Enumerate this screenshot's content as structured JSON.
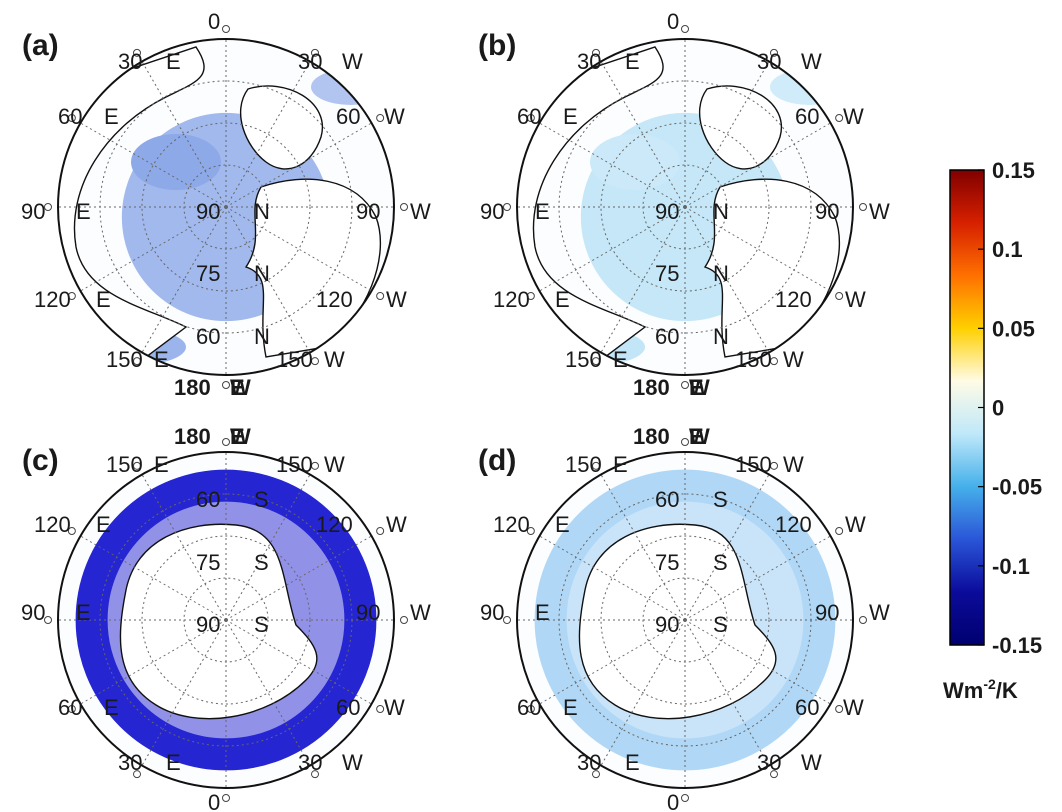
{
  "panels": [
    {
      "id": "a",
      "label": "(a)",
      "hemisphere": "north",
      "lon_labels": [
        "0",
        "30",
        "E",
        "30",
        "W",
        "60",
        "E",
        "60",
        "W",
        "90",
        "E",
        "90",
        "W",
        "120",
        "E",
        "120",
        "W",
        "150",
        "E",
        "150",
        "W",
        "180",
        "W",
        "E"
      ],
      "lat_labels": [
        "90",
        "N",
        "75",
        "N",
        "60",
        "N"
      ],
      "anomaly_strength": 0.55,
      "anomaly_color": "#2f62d6"
    },
    {
      "id": "b",
      "label": "(b)",
      "hemisphere": "north",
      "lon_labels": [
        "0",
        "30",
        "E",
        "30",
        "W",
        "60",
        "E",
        "60",
        "W",
        "90",
        "E",
        "90",
        "W",
        "120",
        "E",
        "120",
        "W",
        "150",
        "E",
        "150",
        "W",
        "180",
        "W",
        "E"
      ],
      "lat_labels": [
        "90",
        "N",
        "75",
        "N",
        "60",
        "N"
      ],
      "anomaly_strength": 0.3,
      "anomaly_color": "#52b6e8"
    },
    {
      "id": "c",
      "label": "(c)",
      "hemisphere": "south",
      "lon_labels": [
        "0",
        "30",
        "E",
        "30",
        "W",
        "60",
        "E",
        "60",
        "W",
        "90",
        "E",
        "90",
        "W",
        "120",
        "E",
        "120",
        "W",
        "150",
        "E",
        "150",
        "W",
        "180",
        "W",
        "E"
      ],
      "lat_labels": [
        "90",
        "S",
        "75",
        "S",
        "60",
        "S"
      ],
      "anomaly_strength": 0.95,
      "anomaly_color": "#1a1ad0"
    },
    {
      "id": "d",
      "label": "(d)",
      "hemisphere": "south",
      "lon_labels": [
        "0",
        "30",
        "E",
        "30",
        "W",
        "60",
        "E",
        "60",
        "W",
        "90",
        "E",
        "90",
        "W",
        "120",
        "E",
        "120",
        "W",
        "150",
        "E",
        "150",
        "W",
        "180",
        "W",
        "E"
      ],
      "lat_labels": [
        "90",
        "S",
        "75",
        "S",
        "60",
        "S"
      ],
      "anomaly_strength": 0.45,
      "anomaly_color": "#4fa8ea"
    }
  ],
  "colorbar": {
    "ticks": [
      "0.15",
      "0.1",
      "0.05",
      "0",
      "-0.05",
      "-0.1",
      "-0.15"
    ],
    "values": [
      0.15,
      0.1,
      0.05,
      0,
      -0.05,
      -0.1,
      -0.15
    ],
    "range": [
      -0.15,
      0.15
    ],
    "unit_base": "Wm",
    "unit_exp": "-2",
    "unit_tail": "/K",
    "colors": [
      "#800000",
      "#d62000",
      "#ff7000",
      "#ffd000",
      "#fffbe6",
      "#bfe8fa",
      "#45b0ea",
      "#2a55d8",
      "#0b0b9a",
      "#000070"
    ]
  }
}
